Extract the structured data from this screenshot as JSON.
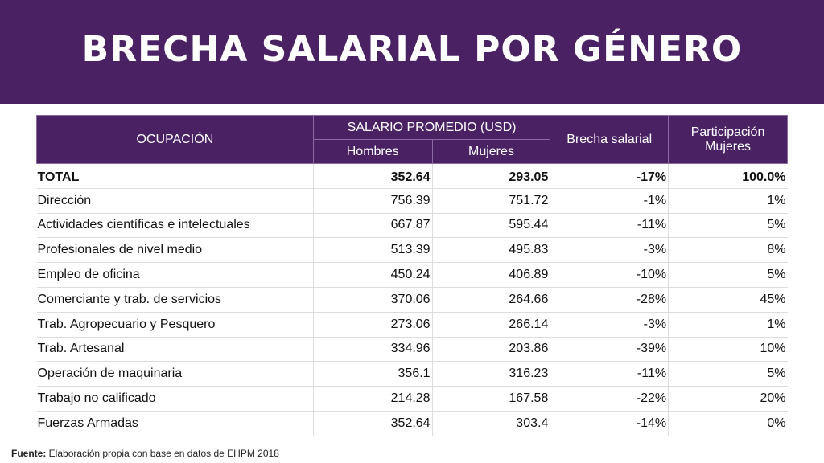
{
  "title": "BRECHA SALARIAL POR GÉNERO",
  "headers": {
    "occupation": "OCUPACIÓN",
    "salary": "SALARIO PROMEDIO (USD)",
    "men": "Hombres",
    "women": "Mujeres",
    "gap": "Brecha salarial",
    "participation": "Participación Mujeres"
  },
  "rows": [
    [
      "TOTAL",
      "352.64",
      "293.05",
      "-17%",
      "100.0%"
    ],
    [
      "Dirección",
      "756.39",
      "751.72",
      "-1%",
      "1%"
    ],
    [
      "Actividades científicas e intelectuales",
      "667.87",
      "595.44",
      "-11%",
      "5%"
    ],
    [
      "Profesionales de nivel medio",
      "513.39",
      "495.83",
      "-3%",
      "8%"
    ],
    [
      "Empleo de oficina",
      "450.24",
      "406.89",
      "-10%",
      "5%"
    ],
    [
      "Comerciante y trab. de servicios",
      "370.06",
      "264.66",
      "-28%",
      "45%"
    ],
    [
      "Trab. Agropecuario y Pesquero",
      "273.06",
      "266.14",
      "-3%",
      "1%"
    ],
    [
      "Trab. Artesanal",
      "334.96",
      "203.86",
      "-39%",
      "10%"
    ],
    [
      "Operación de maquinaria",
      "356.1",
      "316.23",
      "-11%",
      "5%"
    ],
    [
      "Trabajo no calificado",
      "214.28",
      "167.58",
      "-22%",
      "20%"
    ],
    [
      "Fuerzas Armadas",
      "352.64",
      "303.4",
      "-14%",
      "0%"
    ]
  ],
  "footer": {
    "label": "Fuente:",
    "text": " Elaboración propia con base en datos de EHPM 2018"
  }
}
